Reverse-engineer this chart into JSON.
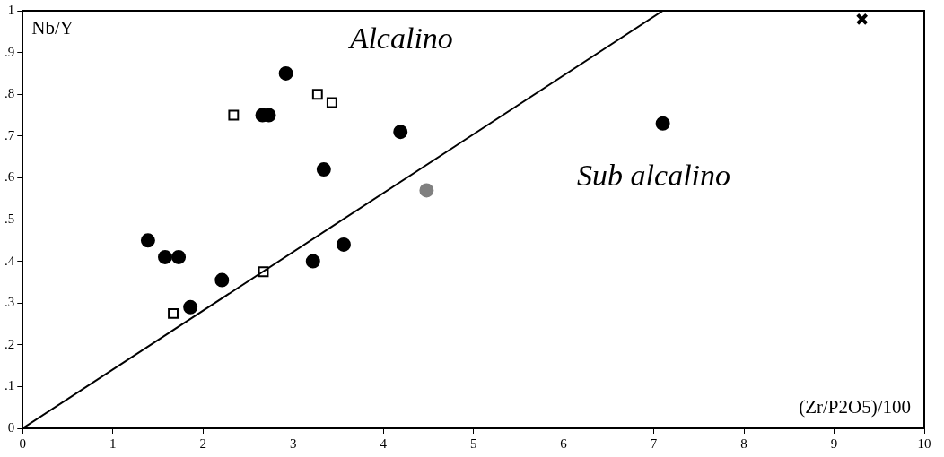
{
  "chart_data": {
    "type": "scatter",
    "xlabel": "(Zr/P2O5)/100",
    "ylabel": "Nb/Y",
    "annotations": [
      "Alcalino",
      "Sub alcalino"
    ],
    "xlim": [
      0,
      10
    ],
    "ylim": [
      0,
      1
    ],
    "xticks": [
      0,
      1,
      2,
      3,
      4,
      5,
      6,
      7,
      8,
      9,
      10
    ],
    "yticks": [
      0,
      {
        "value": 0.1,
        "label": ".1"
      },
      {
        "value": 0.2,
        "label": ".2"
      },
      {
        "value": 0.3,
        "label": ".3"
      },
      {
        "value": 0.4,
        "label": ".4"
      },
      {
        "value": 0.5,
        "label": ".5"
      },
      {
        "value": 0.6,
        "label": ".6"
      },
      {
        "value": 0.7,
        "label": ".7"
      },
      {
        "value": 0.8,
        "label": ".8"
      },
      {
        "value": 0.9,
        "label": ".9"
      },
      1
    ],
    "grid": false,
    "legend": false,
    "series": [
      {
        "type": "line",
        "color": "#000000",
        "marker": "none",
        "line_style": "solid",
        "x": [
          0,
          7.1
        ],
        "values": [
          0,
          1
        ]
      },
      {
        "color": "#000000",
        "marker": "circle",
        "x": [
          1.39,
          1.58,
          1.73,
          1.86,
          2.21,
          2.66,
          2.73,
          2.92,
          3.34,
          3.22,
          3.56,
          4.19,
          7.1
        ],
        "values": [
          0.45,
          0.41,
          0.41,
          0.29,
          0.355,
          0.75,
          0.75,
          0.85,
          0.62,
          0.4,
          0.44,
          0.71,
          0.73
        ]
      },
      {
        "color": "#000000",
        "marker": "square",
        "x": [
          2.34,
          3.27,
          3.43,
          2.67,
          1.67
        ],
        "values": [
          0.75,
          0.8,
          0.78,
          0.375,
          0.275
        ]
      },
      {
        "color": "#808080",
        "marker": "circle",
        "x": [
          4.48
        ],
        "values": [
          0.57
        ]
      },
      {
        "color": "#000000",
        "marker": "cross",
        "x": [
          9.31
        ],
        "values": [
          0.98
        ]
      }
    ]
  }
}
